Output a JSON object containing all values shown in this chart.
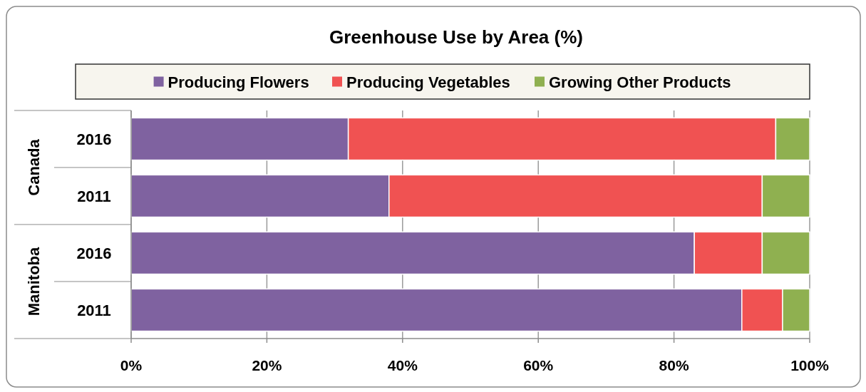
{
  "chart_data": {
    "type": "bar",
    "orientation": "horizontal",
    "stacked": true,
    "title": "Greenhouse Use by Area (%)",
    "categories": [
      "2016",
      "2011",
      "2016",
      "2011"
    ],
    "annotations": [
      "Canada",
      "Manitoba"
    ],
    "series": [
      {
        "name": "Producing Flowers",
        "color": "#7f62a0",
        "values": [
          32,
          38,
          83,
          90
        ]
      },
      {
        "name": "Producing Vegetables",
        "color": "#f05252",
        "values": [
          63,
          55,
          10,
          6
        ]
      },
      {
        "name": "Growing Other Products",
        "color": "#8fb050",
        "values": [
          5,
          7,
          7,
          4
        ]
      }
    ],
    "xlim": [
      0,
      100
    ],
    "xticks": [
      {
        "value": 0,
        "label": "0%"
      },
      {
        "value": 20,
        "label": "20%"
      },
      {
        "value": 40,
        "label": "40%"
      },
      {
        "value": 60,
        "label": "60%"
      },
      {
        "value": 80,
        "label": "80%"
      },
      {
        "value": 100,
        "label": "100%"
      }
    ],
    "grid": "x",
    "legend": "top"
  }
}
